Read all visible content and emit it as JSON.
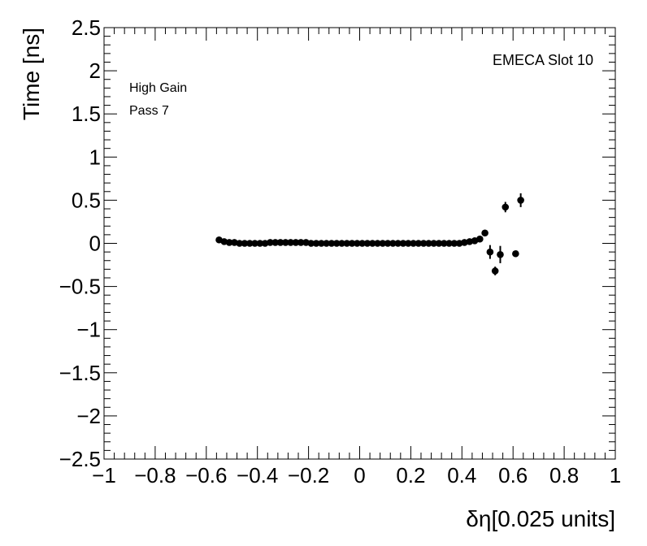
{
  "chart_data": {
    "type": "scatter",
    "xlabel": "δη[0.025 units]",
    "ylabel": "Time [ns]",
    "xlim": [
      -1,
      1
    ],
    "ylim": [
      -2.5,
      2.5
    ],
    "x_ticks": [
      "−1",
      "−0.8",
      "−0.6",
      "−0.4",
      "−0.2",
      "0",
      "0.2",
      "0.4",
      "0.6",
      "0.8",
      "1"
    ],
    "y_ticks": [
      "−2.5",
      "−2",
      "−1.5",
      "−1",
      "−0.5",
      "0",
      "0.5",
      "1",
      "1.5",
      "2",
      "2.5"
    ],
    "annotations": {
      "slot": "EMECA Slot 10",
      "gain": "High Gain",
      "pass": "Pass 7"
    },
    "grid": false,
    "series": [
      {
        "points": [
          {
            "x": -0.55,
            "y": 0.04,
            "err": 0.01
          },
          {
            "x": -0.53,
            "y": 0.02,
            "err": 0.01
          },
          {
            "x": -0.51,
            "y": 0.01,
            "err": 0.01
          },
          {
            "x": -0.49,
            "y": 0.01,
            "err": 0.01
          },
          {
            "x": -0.47,
            "y": 0.0,
            "err": 0.01
          },
          {
            "x": -0.45,
            "y": 0.0,
            "err": 0.01
          },
          {
            "x": -0.43,
            "y": 0.0,
            "err": 0.01
          },
          {
            "x": -0.41,
            "y": 0.0,
            "err": 0.01
          },
          {
            "x": -0.39,
            "y": 0.0,
            "err": 0.01
          },
          {
            "x": -0.37,
            "y": 0.0,
            "err": 0.01
          },
          {
            "x": -0.35,
            "y": 0.01,
            "err": 0.01
          },
          {
            "x": -0.33,
            "y": 0.01,
            "err": 0.01
          },
          {
            "x": -0.31,
            "y": 0.01,
            "err": 0.01
          },
          {
            "x": -0.29,
            "y": 0.01,
            "err": 0.01
          },
          {
            "x": -0.27,
            "y": 0.01,
            "err": 0.01
          },
          {
            "x": -0.25,
            "y": 0.01,
            "err": 0.01
          },
          {
            "x": -0.23,
            "y": 0.01,
            "err": 0.01
          },
          {
            "x": -0.21,
            "y": 0.01,
            "err": 0.01
          },
          {
            "x": -0.19,
            "y": 0.0,
            "err": 0.01
          },
          {
            "x": -0.17,
            "y": 0.0,
            "err": 0.01
          },
          {
            "x": -0.15,
            "y": 0.0,
            "err": 0.01
          },
          {
            "x": -0.13,
            "y": 0.0,
            "err": 0.01
          },
          {
            "x": -0.11,
            "y": 0.0,
            "err": 0.01
          },
          {
            "x": -0.09,
            "y": 0.0,
            "err": 0.01
          },
          {
            "x": -0.07,
            "y": 0.0,
            "err": 0.01
          },
          {
            "x": -0.05,
            "y": 0.0,
            "err": 0.01
          },
          {
            "x": -0.03,
            "y": 0.0,
            "err": 0.01
          },
          {
            "x": -0.01,
            "y": 0.0,
            "err": 0.01
          },
          {
            "x": 0.01,
            "y": 0.0,
            "err": 0.01
          },
          {
            "x": 0.03,
            "y": 0.0,
            "err": 0.01
          },
          {
            "x": 0.05,
            "y": 0.0,
            "err": 0.01
          },
          {
            "x": 0.07,
            "y": 0.0,
            "err": 0.01
          },
          {
            "x": 0.09,
            "y": 0.0,
            "err": 0.01
          },
          {
            "x": 0.11,
            "y": 0.0,
            "err": 0.01
          },
          {
            "x": 0.13,
            "y": 0.0,
            "err": 0.01
          },
          {
            "x": 0.15,
            "y": 0.0,
            "err": 0.01
          },
          {
            "x": 0.17,
            "y": 0.0,
            "err": 0.01
          },
          {
            "x": 0.19,
            "y": 0.0,
            "err": 0.01
          },
          {
            "x": 0.21,
            "y": 0.0,
            "err": 0.01
          },
          {
            "x": 0.23,
            "y": 0.0,
            "err": 0.01
          },
          {
            "x": 0.25,
            "y": 0.0,
            "err": 0.01
          },
          {
            "x": 0.27,
            "y": 0.0,
            "err": 0.01
          },
          {
            "x": 0.29,
            "y": 0.0,
            "err": 0.01
          },
          {
            "x": 0.31,
            "y": 0.0,
            "err": 0.01
          },
          {
            "x": 0.33,
            "y": 0.0,
            "err": 0.01
          },
          {
            "x": 0.35,
            "y": 0.0,
            "err": 0.01
          },
          {
            "x": 0.37,
            "y": 0.0,
            "err": 0.01
          },
          {
            "x": 0.39,
            "y": 0.0,
            "err": 0.01
          },
          {
            "x": 0.41,
            "y": 0.01,
            "err": 0.01
          },
          {
            "x": 0.43,
            "y": 0.02,
            "err": 0.01
          },
          {
            "x": 0.45,
            "y": 0.03,
            "err": 0.01
          },
          {
            "x": 0.47,
            "y": 0.05,
            "err": 0.01
          },
          {
            "x": 0.49,
            "y": 0.12,
            "err": 0.02
          },
          {
            "x": 0.51,
            "y": -0.1,
            "err": 0.08
          },
          {
            "x": 0.53,
            "y": -0.32,
            "err": 0.05
          },
          {
            "x": 0.55,
            "y": -0.13,
            "err": 0.1
          },
          {
            "x": 0.57,
            "y": 0.42,
            "err": 0.06
          },
          {
            "x": 0.61,
            "y": -0.12,
            "err": 0.02
          },
          {
            "x": 0.63,
            "y": 0.5,
            "err": 0.08
          }
        ]
      }
    ]
  }
}
